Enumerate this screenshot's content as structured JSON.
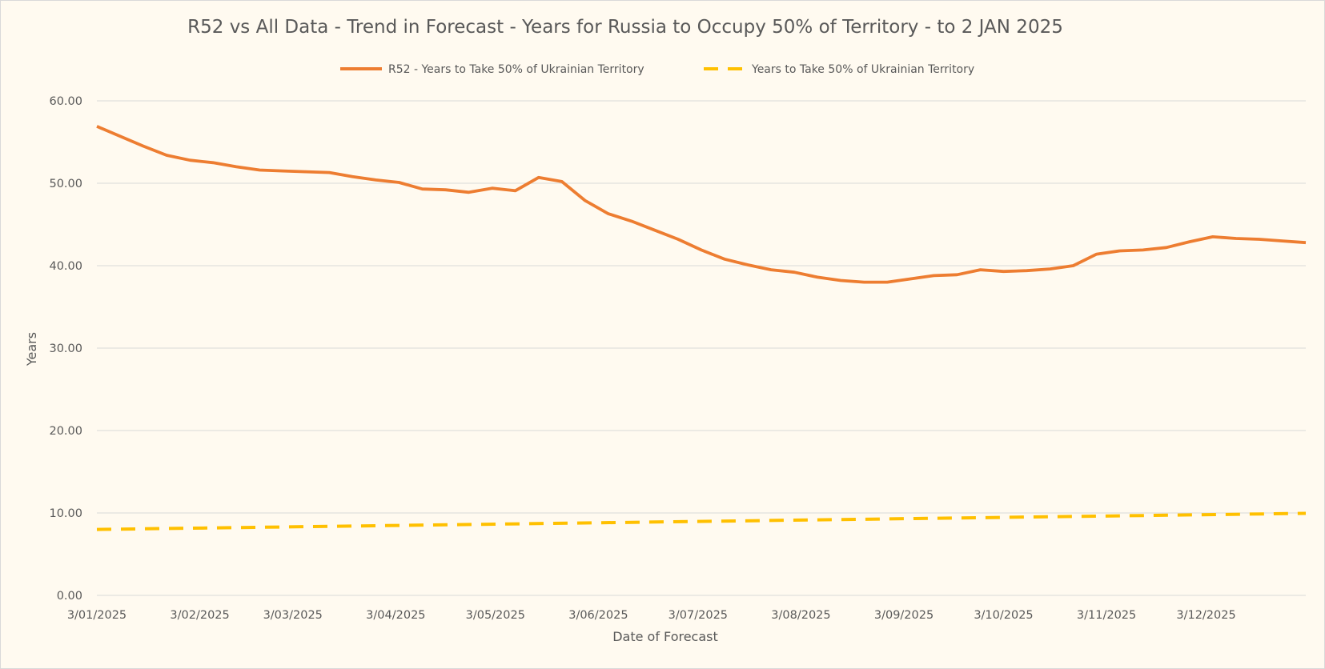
{
  "chart_data": {
    "type": "line",
    "title": "R52 vs All Data  - Trend in Forecast - Years for Russia to Occupy 50% of Territory - to 2 JAN 2025",
    "xlabel": "Date of Forecast",
    "ylabel": "Years",
    "ylim": [
      0,
      60
    ],
    "yticks": [
      "0.00",
      "10.00",
      "20.00",
      "30.00",
      "40.00",
      "50.00",
      "60.00"
    ],
    "x_tick_labels": [
      "3/01/2025",
      "3/02/2025",
      "3/03/2025",
      "3/04/2025",
      "3/05/2025",
      "3/06/2025",
      "3/07/2025",
      "3/08/2025",
      "3/09/2025",
      "3/10/2025",
      "3/11/2025",
      "3/12/2025"
    ],
    "x_range": [
      "2025-01-03",
      "2026-01-02"
    ],
    "grid": true,
    "legend_position": "top",
    "series": [
      {
        "name": "R52 - Years to Take  50% of Ukrainian Territory",
        "color": "#ed7d31",
        "style": "solid",
        "x": [
          "2025-01-03",
          "2025-01-10",
          "2025-01-17",
          "2025-01-24",
          "2025-01-31",
          "2025-02-07",
          "2025-02-14",
          "2025-02-21",
          "2025-02-28",
          "2025-03-07",
          "2025-03-14",
          "2025-03-21",
          "2025-03-28",
          "2025-04-04",
          "2025-04-11",
          "2025-04-18",
          "2025-04-25",
          "2025-05-02",
          "2025-05-09",
          "2025-05-16",
          "2025-05-23",
          "2025-05-30",
          "2025-06-06",
          "2025-06-13",
          "2025-06-20",
          "2025-06-27",
          "2025-07-04",
          "2025-07-11",
          "2025-07-18",
          "2025-07-25",
          "2025-08-01",
          "2025-08-08",
          "2025-08-15",
          "2025-08-22",
          "2025-08-29",
          "2025-09-05",
          "2025-09-12",
          "2025-09-19",
          "2025-09-26",
          "2025-10-03",
          "2025-10-10",
          "2025-10-17",
          "2025-10-24",
          "2025-10-31",
          "2025-11-07",
          "2025-11-14",
          "2025-11-21",
          "2025-11-28",
          "2025-12-05",
          "2025-12-12",
          "2025-12-19",
          "2025-12-26",
          "2026-01-02"
        ],
        "values": [
          56.9,
          55.7,
          54.5,
          53.4,
          52.8,
          52.5,
          52.0,
          51.6,
          51.5,
          51.4,
          51.3,
          50.8,
          50.4,
          50.1,
          49.3,
          49.2,
          48.9,
          49.4,
          49.1,
          50.7,
          50.2,
          47.9,
          46.3,
          45.4,
          44.3,
          43.2,
          41.9,
          40.8,
          40.1,
          39.5,
          39.2,
          38.6,
          38.2,
          38.0,
          38.0,
          38.4,
          38.8,
          38.9,
          39.5,
          39.3,
          39.4,
          39.6,
          40.0,
          41.4,
          41.8,
          41.9,
          42.2,
          42.9,
          43.5,
          43.3,
          43.2,
          43.0,
          42.8
        ]
      },
      {
        "name": "Years to Take  50% of Ukrainian Territory",
        "color": "#ffc000",
        "style": "dashed",
        "x": [
          "2025-01-03",
          "2026-01-02"
        ],
        "values": [
          8.0,
          9.95
        ]
      }
    ]
  }
}
